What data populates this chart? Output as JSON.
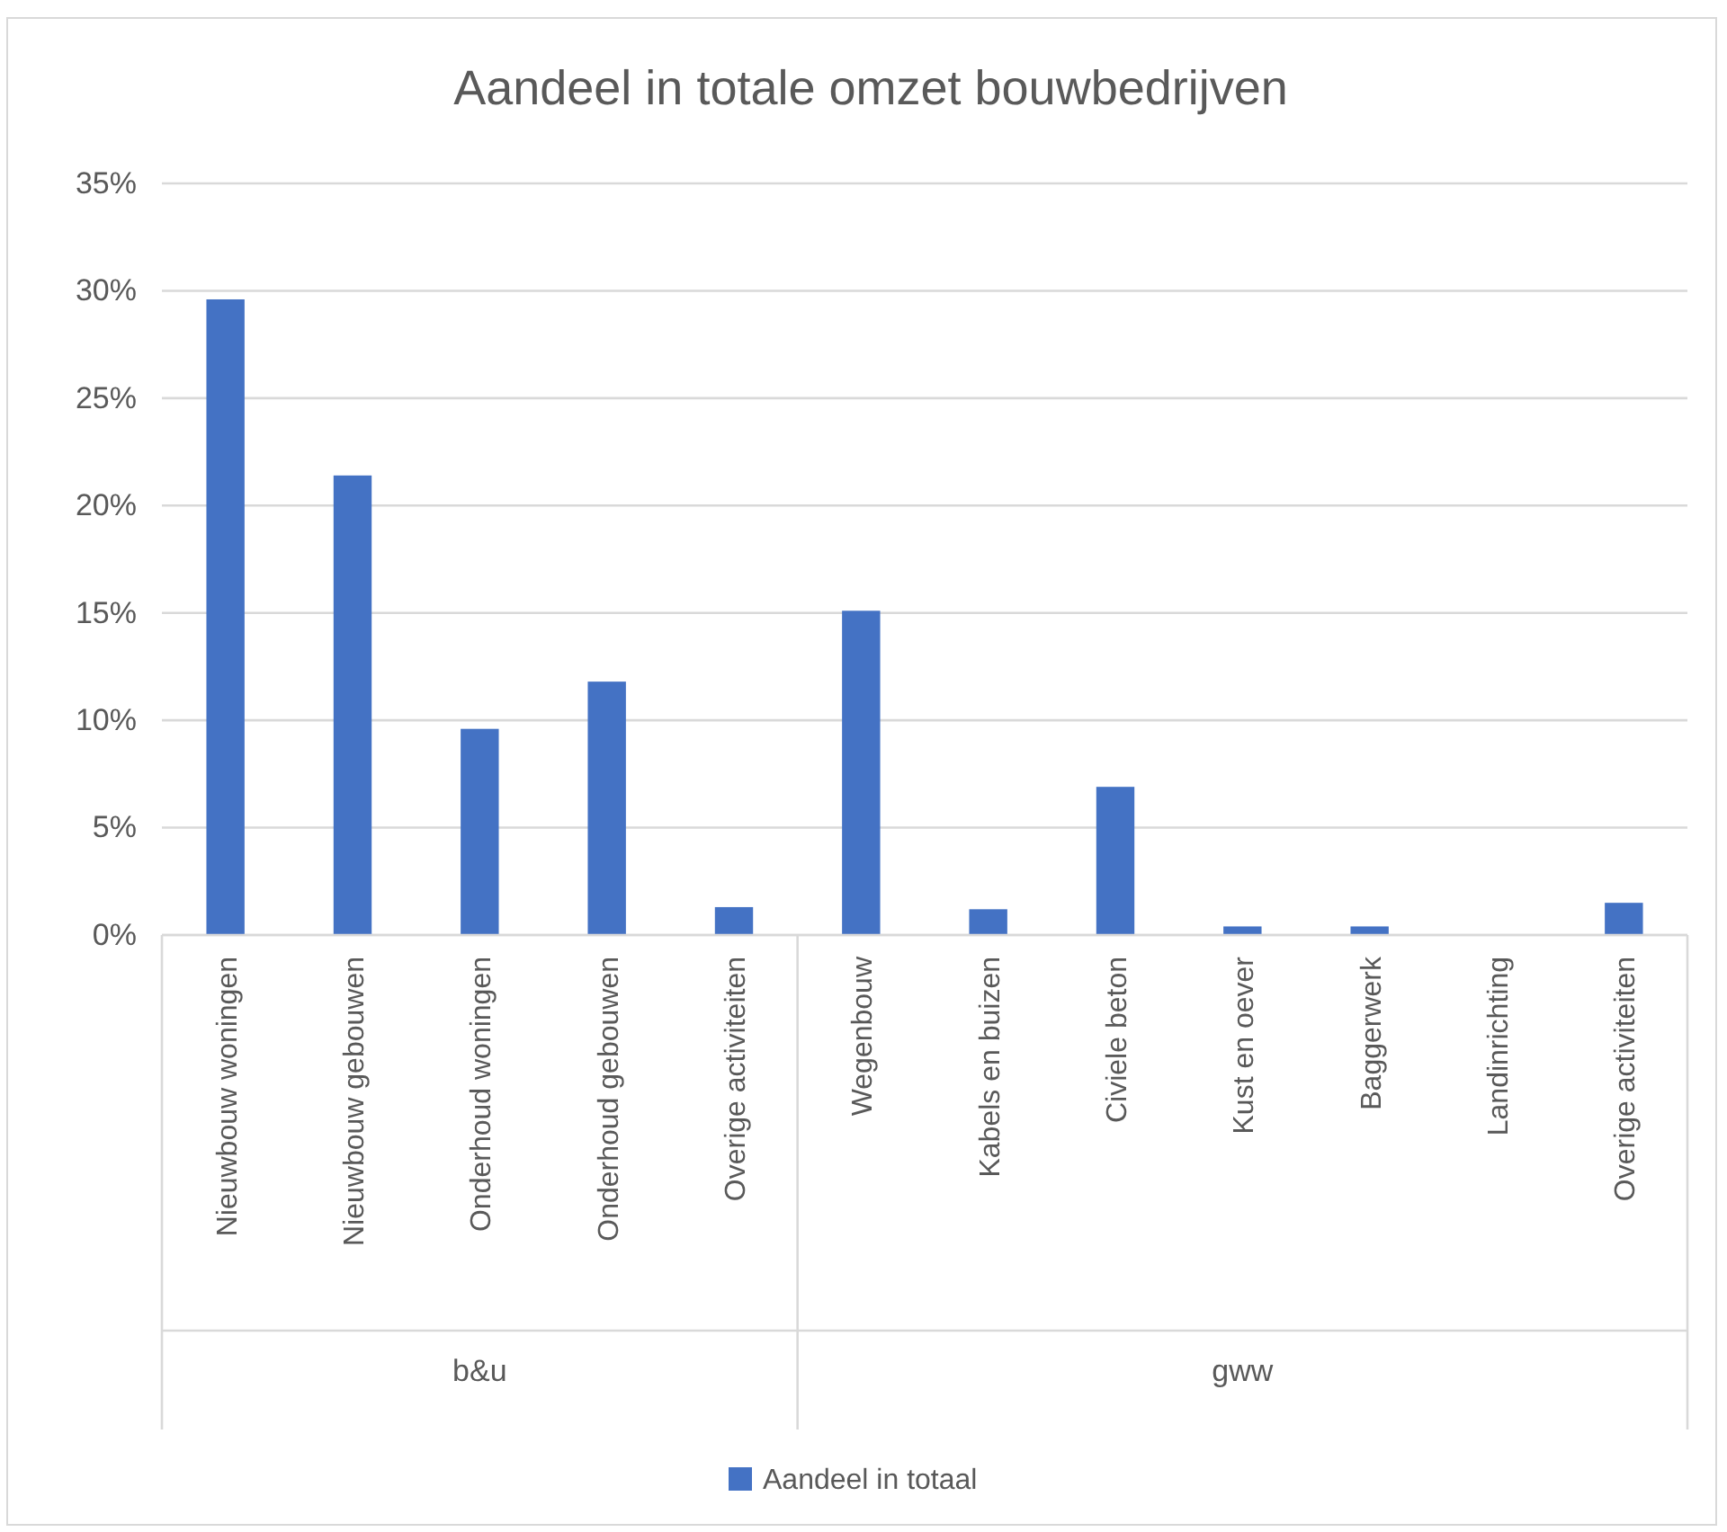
{
  "chart_data": {
    "type": "bar",
    "title": "Aandeel in totale omzet bouwbedrijven",
    "categories": [
      "Nieuwbouw woningen",
      "Nieuwbouw gebouwen",
      "Onderhoud woningen",
      "Onderhoud gebouwen",
      "Overige activiteiten",
      "Wegenbouw",
      "Kabels en buizen",
      "Civiele beton",
      "Kust en oever",
      "Baggerwerk",
      "Landinrichting",
      "Overige activiteiten"
    ],
    "series": [
      {
        "name": "Aandeel in totaal",
        "color": "#4472c4",
        "values": [
          29.6,
          21.4,
          9.6,
          11.8,
          1.3,
          15.1,
          1.2,
          6.9,
          0.4,
          0.4,
          0,
          1.5
        ]
      }
    ],
    "ylim": [
      0,
      35
    ],
    "yticks": [
      {
        "value": 0,
        "label": "0%"
      },
      {
        "value": 5,
        "label": "5%"
      },
      {
        "value": 10,
        "label": "10%"
      },
      {
        "value": 15,
        "label": "15%"
      },
      {
        "value": 20,
        "label": "20%"
      },
      {
        "value": 25,
        "label": "25%"
      },
      {
        "value": 30,
        "label": "30%"
      },
      {
        "value": 35,
        "label": "35%"
      }
    ],
    "annotations": [
      "b&u",
      "gww"
    ],
    "grid": "y",
    "legend": "bottom"
  }
}
